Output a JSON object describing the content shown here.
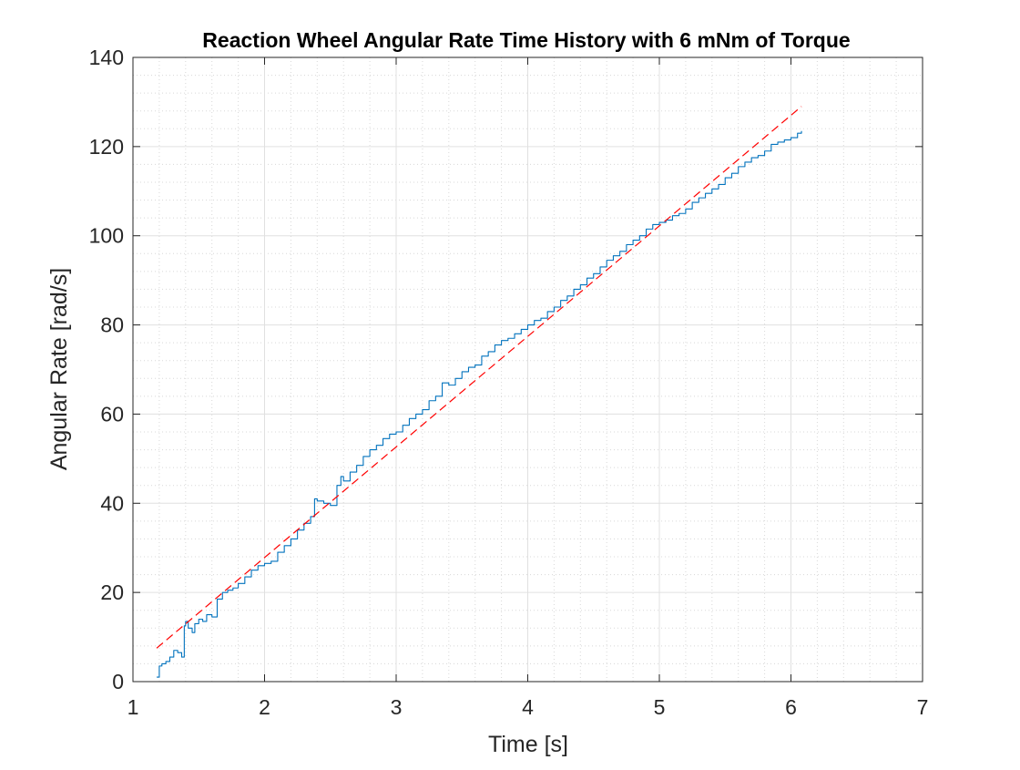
{
  "chart_data": {
    "type": "line",
    "title": "Reaction Wheel Angular Rate Time History with 6 mNm of Torque",
    "xlabel": "Time [s]",
    "ylabel": "Angular Rate [rad/s]",
    "xlim": [
      1,
      7
    ],
    "ylim": [
      0,
      140
    ],
    "xticks": [
      1,
      2,
      3,
      4,
      5,
      6,
      7
    ],
    "yticks": [
      0,
      20,
      40,
      60,
      80,
      100,
      120,
      140
    ],
    "grid": true,
    "minor_grid": true,
    "colors": {
      "measured": "#0072BD",
      "fit": "#ff0000",
      "grid": "#e0e0e0",
      "axes": "#262626"
    },
    "series": [
      {
        "style": "solid",
        "x": [
          1.18,
          1.2,
          1.22,
          1.25,
          1.28,
          1.31,
          1.34,
          1.37,
          1.39,
          1.4,
          1.42,
          1.45,
          1.47,
          1.5,
          1.53,
          1.56,
          1.6,
          1.64,
          1.68,
          1.72,
          1.76,
          1.8,
          1.85,
          1.9,
          1.95,
          2.0,
          2.05,
          2.1,
          2.15,
          2.2,
          2.25,
          2.3,
          2.35,
          2.38,
          2.4,
          2.45,
          2.5,
          2.55,
          2.58,
          2.6,
          2.65,
          2.7,
          2.75,
          2.8,
          2.85,
          2.9,
          2.95,
          3.0,
          3.05,
          3.1,
          3.15,
          3.2,
          3.25,
          3.3,
          3.35,
          3.4,
          3.45,
          3.5,
          3.55,
          3.6,
          3.65,
          3.7,
          3.75,
          3.8,
          3.85,
          3.9,
          3.95,
          4.0,
          4.05,
          4.1,
          4.15,
          4.2,
          4.25,
          4.3,
          4.35,
          4.4,
          4.45,
          4.5,
          4.55,
          4.6,
          4.65,
          4.7,
          4.75,
          4.8,
          4.85,
          4.9,
          4.95,
          5.0,
          5.05,
          5.1,
          5.15,
          5.2,
          5.25,
          5.3,
          5.35,
          5.4,
          5.45,
          5.5,
          5.55,
          5.6,
          5.65,
          5.7,
          5.75,
          5.8,
          5.85,
          5.9,
          5.95,
          6.0,
          6.05,
          6.08
        ],
        "values": [
          1.0,
          3.5,
          4.0,
          4.5,
          5.5,
          7.0,
          6.5,
          5.5,
          12.5,
          13.5,
          12.0,
          11.0,
          13.0,
          14.0,
          13.5,
          15.0,
          14.5,
          18.5,
          20.0,
          20.5,
          21.0,
          22.0,
          23.5,
          25.0,
          26.0,
          26.5,
          27.0,
          29.0,
          30.5,
          32.0,
          34.0,
          35.5,
          37.0,
          41.0,
          40.5,
          40.0,
          39.5,
          44.0,
          46.0,
          45.0,
          47.0,
          48.5,
          50.5,
          52.0,
          53.0,
          54.5,
          55.5,
          56.0,
          57.5,
          59.0,
          60.0,
          61.0,
          63.0,
          64.0,
          67.0,
          66.5,
          68.0,
          69.5,
          70.5,
          71.0,
          73.0,
          74.0,
          75.5,
          76.5,
          77.0,
          78.0,
          79.0,
          80.0,
          81.0,
          81.5,
          83.0,
          84.0,
          85.5,
          86.5,
          88.0,
          89.0,
          90.5,
          91.5,
          93.0,
          94.5,
          95.5,
          96.5,
          98.0,
          99.0,
          100.0,
          101.5,
          102.5,
          103.0,
          103.5,
          104.5,
          105.0,
          106.0,
          107.5,
          108.5,
          109.5,
          110.5,
          111.5,
          113.0,
          114.0,
          115.5,
          116.5,
          117.5,
          118.0,
          119.0,
          120.5,
          121.0,
          121.5,
          122.0,
          123.0,
          123.5
        ]
      },
      {
        "style": "dashed",
        "x": [
          1.18,
          6.08
        ],
        "values": [
          7.5,
          129.0
        ]
      }
    ]
  }
}
